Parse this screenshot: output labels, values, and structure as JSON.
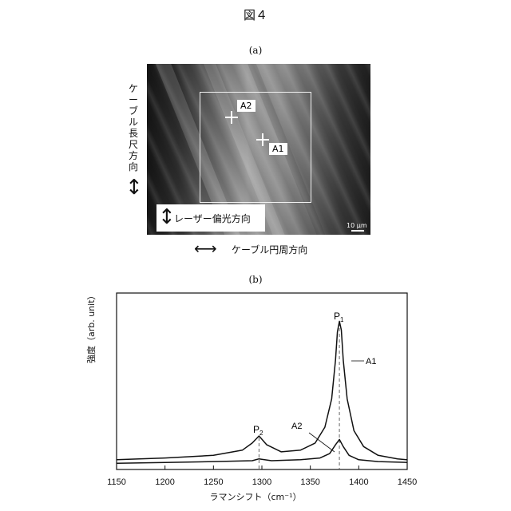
{
  "figure_title": "図４",
  "panel_a": {
    "label": "(a)",
    "vertical_label": "ケーブル長尺方向",
    "vertical_arrow": "↕",
    "laser_arrow": "↕",
    "laser_label": "レーザー偏光方向",
    "horizontal_arrow": "⟷",
    "horizontal_label": "ケーブル円周方向",
    "point_a1": "A1",
    "point_a2": "A2",
    "scale_bar": "10 μm"
  },
  "panel_b": {
    "label": "(b)",
    "x_axis_label": "ラマンシフト（cm⁻¹）",
    "y_axis_label": "強度（arb. unit）",
    "tick_labels": [
      "1150",
      "1200",
      "1250",
      "1300",
      "1350",
      "1400",
      "1450"
    ],
    "peak_p1": "P",
    "peak_p1_sub": "1",
    "peak_p2": "P",
    "peak_p2_sub": "2",
    "series_a1_label": "A1",
    "series_a2_label": "A2"
  },
  "chart_data": {
    "type": "line",
    "xlabel": "ラマンシフト（cm⁻¹）",
    "ylabel": "強度（arb. unit）",
    "xlim": [
      1150,
      1450
    ],
    "ylim": [
      0,
      1
    ],
    "ticks_x": [
      1150,
      1200,
      1250,
      1300,
      1350,
      1400,
      1450
    ],
    "vertical_markers": [
      1297,
      1380
    ],
    "series": [
      {
        "name": "A1",
        "x": [
          1150,
          1200,
          1250,
          1280,
          1290,
          1297,
          1305,
          1320,
          1340,
          1355,
          1365,
          1372,
          1376,
          1378,
          1380,
          1382,
          1384,
          1388,
          1395,
          1405,
          1420,
          1440,
          1450
        ],
        "y": [
          0.055,
          0.065,
          0.08,
          0.11,
          0.15,
          0.19,
          0.14,
          0.1,
          0.11,
          0.15,
          0.24,
          0.4,
          0.62,
          0.78,
          0.84,
          0.79,
          0.62,
          0.4,
          0.22,
          0.13,
          0.08,
          0.06,
          0.055
        ]
      },
      {
        "name": "A2",
        "x": [
          1150,
          1200,
          1250,
          1290,
          1297,
          1310,
          1340,
          1360,
          1370,
          1376,
          1380,
          1384,
          1390,
          1400,
          1420,
          1450
        ],
        "y": [
          0.035,
          0.04,
          0.045,
          0.05,
          0.06,
          0.05,
          0.055,
          0.065,
          0.09,
          0.14,
          0.17,
          0.13,
          0.08,
          0.055,
          0.045,
          0.04
        ]
      }
    ]
  }
}
